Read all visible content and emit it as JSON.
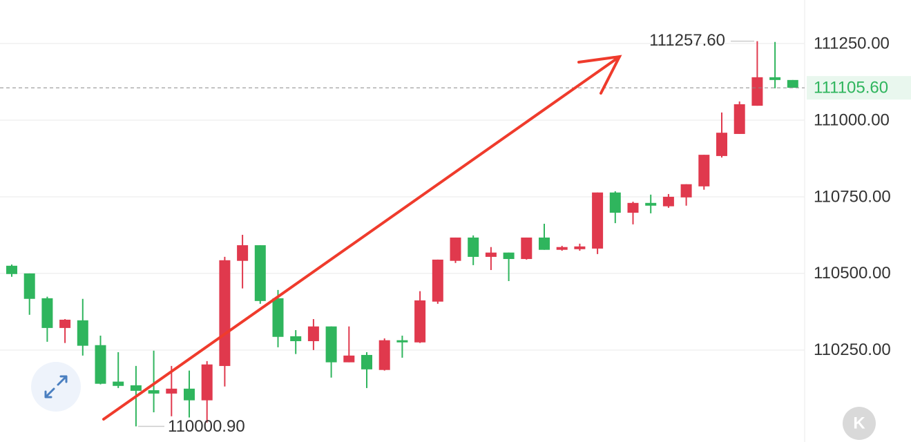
{
  "chart_data": {
    "type": "candlestick",
    "open": [
      110525,
      110500,
      110419,
      110322,
      110347,
      110266,
      110147,
      110135,
      110119,
      110108,
      110124,
      110086,
      110198,
      110541,
      110592,
      110419,
      110295,
      110279,
      110327,
      110210,
      110234,
      110185,
      110282,
      110275,
      110408,
      110541,
      110617,
      110554,
      110568,
      110547,
      110617,
      110577,
      110579,
      110581,
      110764,
      110698,
      110730,
      110719,
      110748,
      110784,
      110883,
      110955,
      111047,
      111140,
      111131
    ],
    "high": [
      110529,
      110500,
      110424,
      110351,
      110417,
      110297,
      110243,
      110198,
      110248,
      110198,
      110183,
      110214,
      110554,
      110626,
      110592,
      110446,
      110315,
      110351,
      110327,
      110327,
      110243,
      110288,
      110297,
      110442,
      110545,
      110617,
      110624,
      110586,
      110568,
      110617,
      110662,
      110590,
      110597,
      110764,
      110768,
      110734,
      110757,
      110759,
      110791,
      110887,
      111025,
      111061,
      111257.6,
      111255,
      111131
    ],
    "low": [
      110489,
      110365,
      110277,
      110273,
      110232,
      110138,
      110126,
      110000.9,
      110047,
      110034,
      110030,
      110014,
      110131,
      110451,
      110401,
      110259,
      110237,
      110250,
      110160,
      110210,
      110126,
      110183,
      110225,
      110273,
      110401,
      110534,
      110527,
      110511,
      110475,
      110545,
      110577,
      110574,
      110574,
      110563,
      110664,
      110660,
      110696,
      110714,
      110721,
      110773,
      110878,
      110955,
      111047,
      111104,
      111105.6
    ],
    "close": [
      110498,
      110417,
      110322,
      110349,
      110264,
      110140,
      110133,
      110117,
      110108,
      110124,
      110086,
      110203,
      110543,
      110592,
      110410,
      110293,
      110279,
      110327,
      110210,
      110232,
      110187,
      110282,
      110275,
      110412,
      110545,
      110617,
      110554,
      110568,
      110547,
      110617,
      110577,
      110586,
      110588,
      110764,
      110698,
      110730,
      110721,
      110750,
      110791,
      110887,
      110959,
      111052,
      111140,
      111131,
      111105.6
    ],
    "up_color": "#e0394d",
    "down_color": "#2fb55d",
    "ylim": [
      109950,
      111392
    ],
    "yticks": [
      {
        "value": 111250,
        "label": "111250.00"
      },
      {
        "value": 111000,
        "label": "111000.00"
      },
      {
        "value": 110750,
        "label": "110750.00"
      },
      {
        "value": 110500,
        "label": "110500.00"
      },
      {
        "value": 110250,
        "label": "110250.00"
      }
    ],
    "grid": true,
    "last_price": {
      "value": 111105.6,
      "label": "111105.60"
    },
    "high_marker": {
      "value": 111257.6,
      "label": "111257.60"
    },
    "low_marker": {
      "value": 110000.9,
      "label": "110000.90"
    },
    "watermark": "K"
  }
}
